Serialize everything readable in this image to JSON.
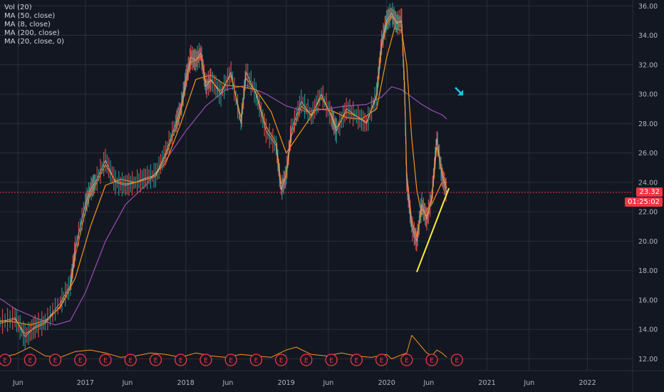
{
  "legend": [
    {
      "label": "Vol (20)"
    },
    {
      "label": "MA (50, close)"
    },
    {
      "label": "MA (8, close)"
    },
    {
      "label": "MA (200, close)"
    },
    {
      "label": "MA (20, close, 0)"
    }
  ],
  "price_badge": "23.32",
  "countdown_badge": "01:25:02",
  "colors": {
    "background": "#131722",
    "grid": "#2a2e39",
    "axis_text": "#b2b5be",
    "price": "#b2b5be",
    "ma50": "#f7931a",
    "ma8": "#f7931a",
    "ma200": "#9c4bb3",
    "volume": "#f7931a",
    "current_price_line": "#f23645",
    "trendline": "#ffeb3b",
    "arrow": "#1ec4e6",
    "earnings": "#f23645"
  },
  "chart_data": {
    "type": "line",
    "y_ticks": [
      "12.00",
      "14.00",
      "16.00",
      "18.00",
      "20.00",
      "22.00",
      "24.00",
      "26.00",
      "28.00",
      "30.00",
      "32.00",
      "34.00",
      "36.00"
    ],
    "x_ticks": [
      "Jun",
      "2017",
      "Jun",
      "2018",
      "Jun",
      "2019",
      "Jun",
      "2020",
      "Jun",
      "2021",
      "Jun",
      "2022"
    ],
    "ylim": [
      11.2,
      36.4
    ],
    "xlim": [
      2016.15,
      2022.45
    ],
    "current_price": 23.32,
    "series": [
      {
        "kind": "price",
        "x": [
          2016.15,
          2016.3,
          2016.4,
          2016.5,
          2016.6,
          2016.75,
          2016.85,
          2016.9,
          2017.0,
          2017.05,
          2017.1,
          2017.2,
          2017.3,
          2017.4,
          2017.5,
          2017.6,
          2017.7,
          2017.8,
          2017.9,
          2017.95,
          2018.0,
          2018.05,
          2018.1,
          2018.15,
          2018.2,
          2018.25,
          2018.35,
          2018.45,
          2018.55,
          2018.6,
          2018.7,
          2018.8,
          2018.9,
          2018.95,
          2019.0,
          2019.05,
          2019.15,
          2019.25,
          2019.35,
          2019.45,
          2019.5,
          2019.6,
          2019.7,
          2019.8,
          2019.9,
          2019.95,
          2020.0,
          2020.05,
          2020.1,
          2020.15,
          2020.18,
          2020.2,
          2020.25,
          2020.3,
          2020.35,
          2020.4,
          2020.45,
          2020.5,
          2020.55,
          2020.6
        ],
        "y": [
          14.5,
          14.8,
          13.5,
          14.2,
          14.5,
          15.8,
          17.0,
          19.5,
          22.5,
          23.5,
          24.0,
          25.5,
          24.0,
          23.8,
          24.0,
          24.3,
          24.5,
          26.0,
          28.0,
          29.0,
          31.0,
          32.5,
          32.3,
          32.8,
          30.5,
          31.0,
          30.0,
          31.5,
          28.0,
          31.5,
          30.0,
          27.5,
          26.5,
          23.5,
          24.5,
          27.5,
          29.5,
          28.5,
          30.0,
          28.5,
          27.5,
          29.0,
          28.5,
          28.0,
          30.0,
          33.5,
          35.0,
          35.5,
          34.8,
          35.0,
          30.0,
          24.0,
          21.0,
          20.0,
          22.5,
          21.5,
          23.0,
          27.0,
          24.5,
          23.32
        ]
      },
      {
        "name": "MA (8, close)",
        "kind": "ma8",
        "x": [
          2016.15,
          2016.3,
          2016.4,
          2016.5,
          2016.6,
          2016.75,
          2016.85,
          2016.9,
          2017.0,
          2017.05,
          2017.1,
          2017.2,
          2017.3,
          2017.4,
          2017.5,
          2017.6,
          2017.7,
          2017.8,
          2017.9,
          2017.95,
          2018.0,
          2018.05,
          2018.1,
          2018.15,
          2018.2,
          2018.25,
          2018.35,
          2018.45,
          2018.55,
          2018.6,
          2018.7,
          2018.8,
          2018.9,
          2018.95,
          2019.0,
          2019.05,
          2019.15,
          2019.25,
          2019.35,
          2019.45,
          2019.5,
          2019.6,
          2019.7,
          2019.8,
          2019.9,
          2019.95,
          2020.0,
          2020.05,
          2020.1,
          2020.15,
          2020.18,
          2020.2,
          2020.25,
          2020.3,
          2020.35,
          2020.4,
          2020.45,
          2020.5,
          2020.55,
          2020.6
        ],
        "y": [
          14.4,
          14.7,
          13.7,
          14.1,
          14.4,
          15.6,
          16.8,
          19.0,
          22.0,
          23.2,
          23.8,
          25.2,
          24.1,
          23.9,
          24.0,
          24.2,
          24.4,
          25.8,
          27.7,
          28.7,
          30.6,
          32.2,
          32.3,
          32.6,
          30.8,
          30.9,
          30.2,
          31.3,
          28.4,
          31.1,
          30.1,
          27.8,
          26.7,
          23.9,
          24.4,
          27.1,
          29.2,
          28.6,
          29.8,
          28.6,
          27.7,
          28.8,
          28.5,
          28.1,
          29.8,
          33.1,
          34.8,
          35.3,
          34.9,
          34.9,
          30.6,
          24.7,
          21.4,
          20.3,
          22.2,
          21.7,
          22.8,
          26.4,
          24.8,
          23.6
        ]
      },
      {
        "name": "MA (50, close)",
        "kind": "ma50",
        "x": [
          2016.15,
          2016.3,
          2016.45,
          2016.6,
          2016.75,
          2016.9,
          2017.05,
          2017.2,
          2017.35,
          2017.5,
          2017.65,
          2017.8,
          2017.95,
          2018.1,
          2018.25,
          2018.4,
          2018.55,
          2018.7,
          2018.85,
          2019.0,
          2019.15,
          2019.3,
          2019.45,
          2019.6,
          2019.75,
          2019.9,
          2020.0,
          2020.08,
          2020.15,
          2020.2,
          2020.25,
          2020.3,
          2020.35,
          2020.45,
          2020.55,
          2020.6
        ],
        "y": [
          14.6,
          14.5,
          14.3,
          14.6,
          15.5,
          17.5,
          21.0,
          23.8,
          24.2,
          24.0,
          24.3,
          25.3,
          28.0,
          31.0,
          31.3,
          30.6,
          30.5,
          30.3,
          28.8,
          26.0,
          27.5,
          29.0,
          28.9,
          28.4,
          28.3,
          29.0,
          32.5,
          34.5,
          34.3,
          32.0,
          27.0,
          23.5,
          21.8,
          22.5,
          24.0,
          24.0
        ]
      },
      {
        "name": "MA (200, close)",
        "kind": "ma200",
        "x": [
          2016.15,
          2016.3,
          2016.5,
          2016.7,
          2016.85,
          2017.0,
          2017.2,
          2017.4,
          2017.6,
          2017.8,
          2018.0,
          2018.2,
          2018.4,
          2018.6,
          2018.8,
          2019.0,
          2019.2,
          2019.4,
          2019.6,
          2019.8,
          2019.95,
          2020.05,
          2020.15,
          2020.25,
          2020.35,
          2020.45,
          2020.55,
          2020.6
        ],
        "y": [
          16.1,
          15.4,
          14.8,
          14.3,
          14.6,
          16.5,
          20.0,
          22.5,
          23.8,
          25.5,
          27.5,
          29.2,
          30.3,
          30.6,
          30.0,
          29.2,
          28.8,
          29.0,
          29.2,
          29.3,
          29.8,
          30.5,
          30.3,
          29.8,
          29.3,
          28.9,
          28.6,
          28.3
        ]
      },
      {
        "name": "Vol (20)",
        "kind": "volume",
        "x": [
          2016.15,
          2016.3,
          2016.45,
          2016.6,
          2016.75,
          2016.9,
          2017.05,
          2017.2,
          2017.35,
          2017.5,
          2017.65,
          2017.8,
          2017.95,
          2018.1,
          2018.25,
          2018.4,
          2018.55,
          2018.7,
          2018.85,
          2019.0,
          2019.1,
          2019.25,
          2019.4,
          2019.55,
          2019.7,
          2019.85,
          2020.0,
          2020.05,
          2020.12,
          2020.2,
          2020.25,
          2020.3,
          2020.35,
          2020.4,
          2020.45,
          2020.5,
          2020.55,
          2020.6
        ],
        "y": [
          12.1,
          12.3,
          12.8,
          12.2,
          12.1,
          12.5,
          12.6,
          12.4,
          12.1,
          12.2,
          12.4,
          12.3,
          12.1,
          12.4,
          12.2,
          12.1,
          12.3,
          12.2,
          12.1,
          12.6,
          12.8,
          12.3,
          12.2,
          12.4,
          12.2,
          12.1,
          12.3,
          12.0,
          12.2,
          12.4,
          13.6,
          13.2,
          12.8,
          12.4,
          12.2,
          12.6,
          12.4,
          12.1
        ]
      }
    ],
    "trendline": {
      "x": [
        2020.3,
        2020.62
      ],
      "y": [
        17.9,
        23.6
      ]
    },
    "earnings_markers": {
      "label": "E",
      "x": [
        2016.2,
        2016.45,
        2016.7,
        2016.95,
        2017.2,
        2017.45,
        2017.7,
        2017.95,
        2018.2,
        2018.45,
        2018.7,
        2018.95,
        2019.2,
        2019.45,
        2019.7,
        2019.95,
        2020.2,
        2020.45,
        2020.7
      ]
    },
    "arrow": {
      "x": 2020.72,
      "y": 30.2
    }
  }
}
